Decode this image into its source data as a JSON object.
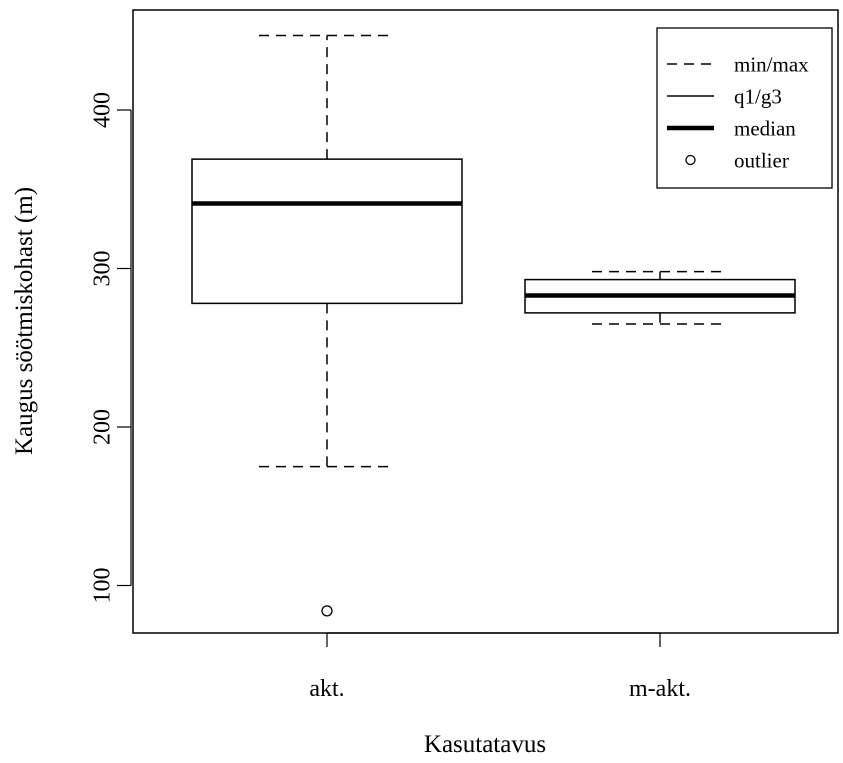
{
  "chart_data": {
    "type": "boxplot",
    "title": "",
    "xlabel": "Kasutatavus",
    "ylabel": "Kaugus söötmiskohast (m)",
    "ylim": [
      70,
      450
    ],
    "y_ticks": [
      100,
      200,
      300,
      400
    ],
    "grid": false,
    "legend_position": "top-right",
    "categories": [
      "akt.",
      "m-akt."
    ],
    "boxes": [
      {
        "category": "akt.",
        "min": 175,
        "q1": 278,
        "median": 341,
        "q3": 369,
        "max": 447,
        "outliers": [
          84
        ]
      },
      {
        "category": "m-akt.",
        "min": 265,
        "q1": 272,
        "median": 283,
        "q3": 293,
        "max": 298,
        "outliers": []
      }
    ],
    "legend": [
      {
        "label": "min/max",
        "style": "dashed"
      },
      {
        "label": "q1/g3",
        "style": "thin"
      },
      {
        "label": "median",
        "style": "thick"
      },
      {
        "label": "outlier",
        "style": "circle"
      }
    ],
    "colors": {
      "line": "#000000",
      "background": "#ffffff"
    }
  }
}
